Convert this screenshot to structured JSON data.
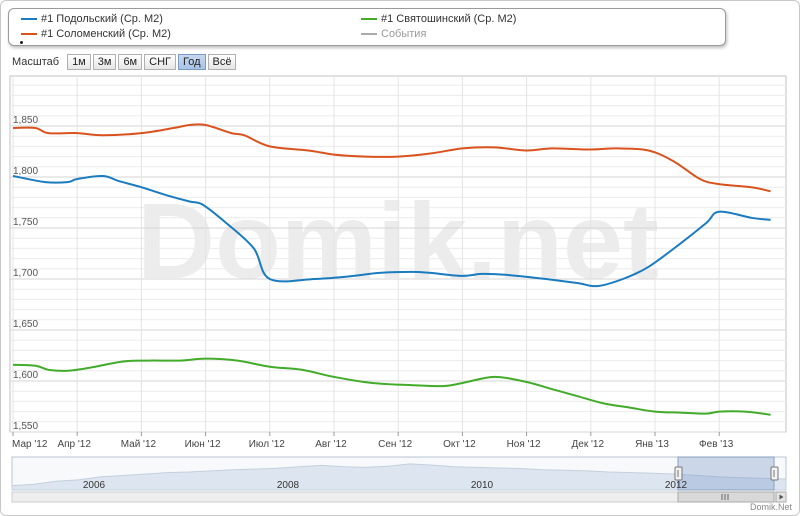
{
  "zoom": {
    "label": "Масштаб",
    "buttons": [
      "1м",
      "3м",
      "6м",
      "СНГ",
      "Год",
      "Всё"
    ],
    "selected": "Год"
  },
  "watermark": "Domik.net",
  "credits": "Domik.Net",
  "colors": {
    "podolsky": "#1a7bbf",
    "solomensky": "#d9531e",
    "svyatoshinsky": "#43ab2a",
    "events": "#aaaaaa"
  },
  "chart_data": {
    "type": "line",
    "title": "",
    "xlabel": "",
    "ylabel": "",
    "events_label": "События",
    "ylim": [
      1540,
      1900
    ],
    "y_ticks": [
      "1,550",
      "1,600",
      "1,650",
      "1,700",
      "1,750",
      "1,800",
      "1,850"
    ],
    "x_ticks": [
      "Мар '12",
      "Апр '12",
      "Май '12",
      "Июн '12",
      "Июл '12",
      "Авг '12",
      "Сен '12",
      "Окт '12",
      "Ноя '12",
      "Дек '12",
      "Янв '13",
      "Фев '13"
    ],
    "grid": true,
    "x_unit": "month index (0 = Мар '12)",
    "series": [
      {
        "name": "#1 Подольский (Ср. M2)",
        "x": [
          0,
          0.5,
          0.85,
          1.0,
          1.4,
          1.65,
          2.0,
          2.4,
          2.75,
          2.95,
          3.3,
          3.75,
          4.0,
          4.7,
          5.3,
          5.7,
          6.2,
          6.5,
          7.0,
          7.3,
          7.7,
          8.3,
          8.8,
          9.1,
          9.5,
          9.9,
          10.4,
          10.8,
          11.0,
          11.5,
          11.8
        ],
        "values": [
          1801,
          1795,
          1795,
          1798,
          1801,
          1796,
          1790,
          1782,
          1776,
          1773,
          1756,
          1730,
          1700,
          1700,
          1703,
          1706,
          1707,
          1706,
          1703,
          1705,
          1704,
          1700,
          1696,
          1693,
          1700,
          1712,
          1735,
          1755,
          1766,
          1760,
          1758
        ]
      },
      {
        "name": "#1 Соломенский (Ср. M2)",
        "x": [
          0,
          0.35,
          0.55,
          1.0,
          1.4,
          2.0,
          2.5,
          2.75,
          3.0,
          3.4,
          3.6,
          4.0,
          4.6,
          5.0,
          5.5,
          6.0,
          6.5,
          7.0,
          7.5,
          8.0,
          8.4,
          9.0,
          9.4,
          9.9,
          10.3,
          10.7,
          11.0,
          11.5,
          11.8
        ],
        "values": [
          1848,
          1848,
          1843,
          1843,
          1841,
          1843,
          1848,
          1851,
          1851,
          1843,
          1841,
          1830,
          1826,
          1822,
          1820,
          1820,
          1823,
          1828,
          1829,
          1826,
          1828,
          1827,
          1828,
          1826,
          1815,
          1798,
          1793,
          1790,
          1786
        ]
      },
      {
        "name": "#1 Святошинский (Ср. M2)",
        "x": [
          0,
          0.35,
          0.55,
          0.85,
          1.2,
          1.7,
          2.1,
          2.6,
          3.0,
          3.5,
          4.0,
          4.5,
          5.0,
          5.6,
          6.2,
          6.7,
          7.0,
          7.5,
          8.0,
          8.4,
          8.8,
          9.2,
          9.6,
          10.0,
          10.4,
          10.8,
          11.0,
          11.4,
          11.8
        ],
        "values": [
          1616,
          1615,
          1611,
          1610,
          1613,
          1619,
          1620,
          1620,
          1622,
          1620,
          1614,
          1611,
          1604,
          1598,
          1596,
          1595,
          1598,
          1604,
          1599,
          1592,
          1585,
          1578,
          1574,
          1570,
          1569,
          1568,
          1570,
          1570,
          1567
        ]
      }
    ],
    "navigator": {
      "ticks": [
        "2006",
        "2008",
        "2010",
        "2012"
      ]
    }
  }
}
